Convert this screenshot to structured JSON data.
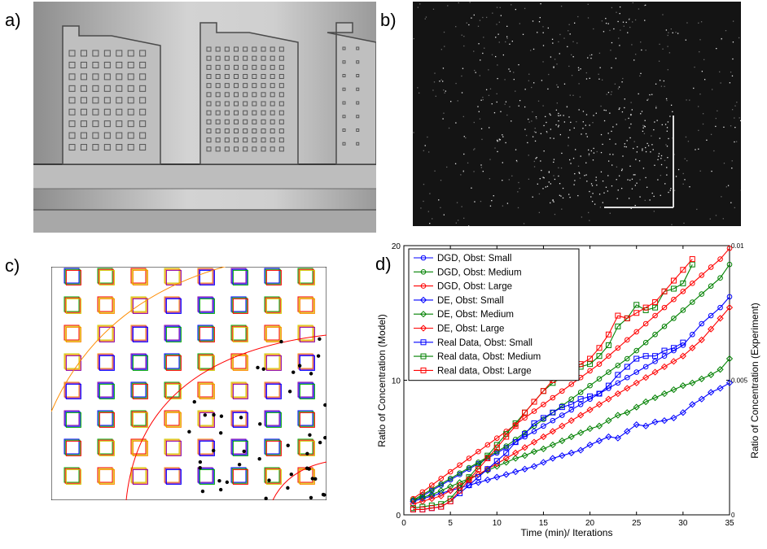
{
  "panels": {
    "a": {
      "label": "a)"
    },
    "b": {
      "label": "b)"
    },
    "c": {
      "label": "c)"
    },
    "d": {
      "label": "d)"
    }
  },
  "colors": {
    "blue": "#0000ff",
    "green": "#008000",
    "red": "#ff0000"
  },
  "chart_data": {
    "type": "line",
    "xlabel": "Time (min)/ Iterations",
    "ylabel": "Ratio of Concentration (Model)",
    "y2label": "Ratio of Concentration (Experiment)",
    "xlim": [
      0,
      35
    ],
    "ylim": [
      0,
      20
    ],
    "y2lim": [
      0,
      0.01
    ],
    "xticks": [
      "0",
      "5",
      "10",
      "15",
      "20",
      "25",
      "30",
      "35"
    ],
    "yticks": [
      "0",
      "10",
      "20"
    ],
    "y2ticks": [
      "0",
      "0.005",
      "0.01"
    ],
    "legend_position": "top-left",
    "series": [
      {
        "name": "DGD, Obst: Small",
        "color": "#0000ff",
        "marker": "circle",
        "x": [
          1,
          2,
          3,
          4,
          5,
          6,
          7,
          8,
          9,
          10,
          11,
          12,
          13,
          14,
          15,
          16,
          17,
          18,
          19,
          20,
          21,
          22,
          23,
          24,
          25,
          26,
          27,
          28,
          29,
          30,
          31,
          32,
          33,
          34,
          35
        ],
        "y": [
          1.0,
          1.4,
          1.8,
          2.2,
          2.6,
          3.0,
          3.4,
          3.8,
          4.2,
          4.6,
          5.0,
          5.4,
          5.8,
          6.2,
          6.6,
          7.0,
          7.4,
          7.8,
          8.2,
          8.6,
          9.0,
          9.4,
          9.8,
          10.2,
          10.6,
          11.0,
          11.4,
          11.8,
          12.2,
          12.6,
          13.4,
          14.2,
          14.8,
          15.4,
          16.2
        ]
      },
      {
        "name": "DGD, Obst: Medium",
        "color": "#008000",
        "marker": "circle",
        "x": [
          1,
          2,
          3,
          4,
          5,
          6,
          7,
          8,
          9,
          10,
          11,
          12,
          13,
          14,
          15,
          16,
          17,
          18,
          19,
          20,
          21,
          22,
          23,
          24,
          25,
          26,
          27,
          28,
          29,
          30,
          31,
          32,
          33,
          34,
          35
        ],
        "y": [
          1.1,
          1.5,
          1.9,
          2.3,
          2.7,
          3.1,
          3.5,
          3.9,
          4.3,
          4.7,
          5.1,
          5.6,
          6.1,
          6.6,
          7.1,
          7.6,
          8.1,
          8.6,
          9.1,
          9.6,
          10.1,
          10.6,
          11.1,
          11.6,
          12.2,
          12.8,
          13.4,
          14.0,
          14.6,
          15.2,
          15.8,
          16.4,
          17.0,
          17.6,
          18.6
        ]
      },
      {
        "name": "DGD, Obst: Large",
        "color": "#ff0000",
        "marker": "circle",
        "x": [
          1,
          2,
          3,
          4,
          5,
          6,
          7,
          8,
          9,
          10,
          11,
          12,
          13,
          14,
          15,
          16,
          17,
          18,
          19,
          20,
          21,
          22,
          23,
          24,
          25,
          26,
          27,
          28,
          29,
          30,
          31,
          32,
          33,
          34,
          35
        ],
        "y": [
          1.2,
          1.7,
          2.2,
          2.7,
          3.2,
          3.7,
          4.2,
          4.7,
          5.2,
          5.7,
          6.2,
          6.7,
          7.2,
          7.7,
          8.2,
          8.7,
          9.2,
          9.7,
          10.2,
          10.7,
          11.2,
          11.8,
          12.4,
          13.0,
          13.6,
          14.2,
          14.8,
          15.4,
          16.0,
          16.6,
          17.2,
          17.8,
          18.4,
          19.0,
          19.8
        ]
      },
      {
        "name": "DE, Obst: Small",
        "color": "#0000ff",
        "marker": "diamond",
        "x": [
          1,
          2,
          3,
          4,
          5,
          6,
          7,
          8,
          9,
          10,
          11,
          12,
          13,
          14,
          15,
          16,
          17,
          18,
          19,
          20,
          21,
          22,
          23,
          24,
          25,
          26,
          27,
          28,
          29,
          30,
          31,
          32,
          33,
          34,
          35
        ],
        "y": [
          1.0,
          1.2,
          1.4,
          1.6,
          1.8,
          2.0,
          2.2,
          2.4,
          2.6,
          2.8,
          3.0,
          3.2,
          3.4,
          3.6,
          3.9,
          4.2,
          4.4,
          4.6,
          4.8,
          5.2,
          5.5,
          5.8,
          5.7,
          6.2,
          6.7,
          6.6,
          6.9,
          7.0,
          7.2,
          7.6,
          8.2,
          8.6,
          9.1,
          9.4,
          9.8
        ]
      },
      {
        "name": "DE, Obst: Medium",
        "color": "#008000",
        "marker": "diamond",
        "x": [
          1,
          2,
          3,
          4,
          5,
          6,
          7,
          8,
          9,
          10,
          11,
          12,
          13,
          14,
          15,
          16,
          17,
          18,
          19,
          20,
          21,
          22,
          23,
          24,
          25,
          26,
          27,
          28,
          29,
          30,
          31,
          32,
          33,
          34,
          35
        ],
        "y": [
          1.1,
          1.3,
          1.5,
          1.8,
          2.1,
          2.4,
          2.7,
          3.0,
          3.3,
          3.6,
          3.9,
          4.2,
          4.4,
          4.7,
          4.9,
          5.2,
          5.5,
          5.8,
          6.1,
          6.4,
          6.6,
          7.0,
          7.4,
          7.6,
          8.0,
          8.4,
          8.7,
          9.0,
          9.3,
          9.6,
          9.8,
          10.1,
          10.4,
          10.8,
          11.6
        ]
      },
      {
        "name": "DE, Obst: Large",
        "color": "#ff0000",
        "marker": "diamond",
        "x": [
          1,
          2,
          3,
          4,
          5,
          6,
          7,
          8,
          9,
          10,
          11,
          12,
          13,
          14,
          15,
          16,
          17,
          18,
          19,
          20,
          21,
          22,
          23,
          24,
          25,
          26,
          27,
          28,
          29,
          30,
          31,
          32,
          33,
          34,
          35
        ],
        "y": [
          0.8,
          1.0,
          1.2,
          1.4,
          1.8,
          2.2,
          2.6,
          3.0,
          3.4,
          3.8,
          4.2,
          4.6,
          5.0,
          5.4,
          5.8,
          6.2,
          6.6,
          7.0,
          7.4,
          7.8,
          8.2,
          8.6,
          9.0,
          9.4,
          9.8,
          10.2,
          10.6,
          11.0,
          11.4,
          11.8,
          12.4,
          13.0,
          13.8,
          14.6,
          15.4
        ]
      },
      {
        "name": "Real Data, Obst: Small",
        "color": "#0000ff",
        "marker": "square",
        "x": [
          1,
          2,
          3,
          4,
          5,
          6,
          7,
          8,
          9,
          10,
          11,
          12,
          13,
          14,
          15,
          16,
          17,
          18,
          19,
          20,
          21,
          22,
          23,
          24,
          25,
          26,
          27,
          28,
          29,
          30
        ],
        "y": [
          0.4,
          0.4,
          0.5,
          0.6,
          1.0,
          1.6,
          2.2,
          2.8,
          3.4,
          4.0,
          4.6,
          5.4,
          6.0,
          6.8,
          7.2,
          7.6,
          8.0,
          8.2,
          8.6,
          8.8,
          9.0,
          9.6,
          10.4,
          11.0,
          11.6,
          11.8,
          11.8,
          12.2,
          12.4,
          12.8
        ]
      },
      {
        "name": "Real data, Obst: Medium",
        "color": "#008000",
        "marker": "square",
        "x": [
          1,
          2,
          3,
          4,
          5,
          6,
          7,
          8,
          9,
          10,
          11,
          12,
          13,
          14,
          15,
          16,
          17,
          18,
          19,
          20,
          21,
          22,
          23,
          24,
          25,
          26,
          27,
          28,
          29,
          30,
          31
        ],
        "y": [
          0.5,
          0.6,
          0.7,
          0.8,
          1.2,
          2.0,
          2.8,
          3.6,
          4.4,
          5.2,
          6.0,
          6.8,
          7.6,
          8.4,
          9.2,
          9.8,
          10.2,
          10.8,
          11.0,
          11.2,
          11.8,
          12.6,
          14.0,
          14.6,
          15.6,
          15.2,
          15.4,
          16.6,
          16.8,
          17.2,
          18.6
        ]
      },
      {
        "name": "Real data, Obst: Large",
        "color": "#ff0000",
        "marker": "square",
        "x": [
          1,
          2,
          3,
          4,
          5,
          6,
          7,
          8,
          9,
          10,
          11,
          12,
          13,
          14,
          15,
          16,
          17,
          18,
          19,
          20,
          21,
          22,
          23,
          24,
          25,
          26,
          27,
          28,
          29,
          30,
          31
        ],
        "y": [
          0.4,
          0.4,
          0.5,
          0.6,
          1.0,
          1.8,
          2.6,
          3.4,
          4.2,
          5.0,
          5.8,
          6.6,
          7.6,
          8.4,
          9.2,
          10.0,
          10.6,
          10.8,
          11.2,
          11.6,
          12.4,
          13.4,
          14.8,
          14.6,
          15.0,
          15.4,
          15.8,
          16.6,
          17.4,
          18.2,
          19.0
        ]
      }
    ]
  }
}
